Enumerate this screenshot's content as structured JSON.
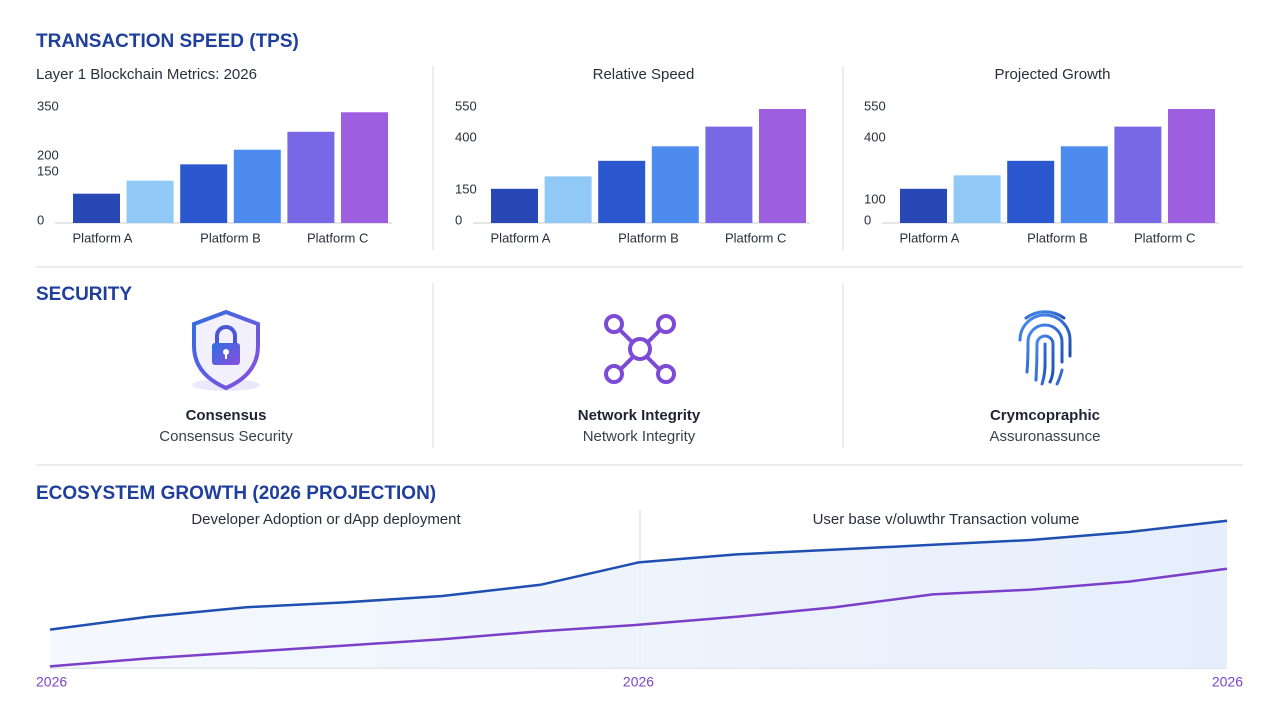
{
  "sections": {
    "speed": "TRANSACTION SPEED (TPS)",
    "security": "SECURITY",
    "growth": "ECOSYSTEM GROWTH (2026 PROJECTION)"
  },
  "security_items": [
    {
      "title": "Consensus",
      "subtitle": "Consensus Security"
    },
    {
      "title": "Network Integrity",
      "subtitle": "Network Integrity"
    },
    {
      "title": "Crymcopraphic",
      "subtitle": "Assuronassunce"
    }
  ],
  "chart_data": [
    {
      "type": "bar",
      "title": "Layer 1 Blockchain Metrics: 2026",
      "categories": [
        "Platform A",
        null,
        "Platform B",
        null,
        "Platform C",
        null
      ],
      "values": [
        90,
        130,
        180,
        225,
        280,
        340
      ],
      "colors": [
        "#2748b5",
        "#90c8f6",
        "#2c58cf",
        "#4d8bef",
        "#7868e6",
        "#9d5fe0"
      ],
      "ylim": [
        0,
        350
      ],
      "yticks": [
        0,
        150,
        200,
        350
      ]
    },
    {
      "type": "bar",
      "title": "Relative Speed",
      "categories": [
        "Platform A",
        null,
        "Platform B",
        null,
        "Platform C",
        null
      ],
      "values": [
        165,
        225,
        300,
        370,
        465,
        550
      ],
      "colors": [
        "#2748b5",
        "#90c8f6",
        "#2c58cf",
        "#4d8bef",
        "#7868e6",
        "#9d5fe0"
      ],
      "ylim": [
        0,
        550
      ],
      "yticks": [
        0,
        150,
        400,
        550
      ]
    },
    {
      "type": "bar",
      "title": "Projected Growth",
      "categories": [
        "Platform A",
        null,
        "Platform B",
        null,
        "Platform C",
        null
      ],
      "values": [
        165,
        230,
        300,
        370,
        465,
        550
      ],
      "colors": [
        "#2748b5",
        "#90c8f6",
        "#2c58cf",
        "#4d8bef",
        "#7868e6",
        "#9d5fe0"
      ],
      "ylim": [
        0,
        550
      ],
      "yticks": [
        0,
        100,
        400,
        550
      ]
    },
    {
      "type": "line",
      "annotations": [
        "Developer Adoption or dApp deployment",
        "User base v/oluwthr Transaction volume"
      ],
      "categories": [
        "2026",
        null,
        null,
        null,
        null,
        null,
        "2026",
        null,
        null,
        null,
        null,
        null,
        "2026"
      ],
      "ylim": [
        0,
        100
      ],
      "series": [
        {
          "color": "#1f4fb0",
          "values": [
            24,
            32,
            38,
            41,
            45,
            52,
            66,
            71,
            74,
            77,
            80,
            85,
            92
          ]
        },
        {
          "color": "#7b3fc8",
          "values": [
            1,
            6,
            10,
            14,
            18,
            23,
            27,
            32,
            38,
            46,
            49,
            54,
            62
          ]
        }
      ]
    }
  ]
}
